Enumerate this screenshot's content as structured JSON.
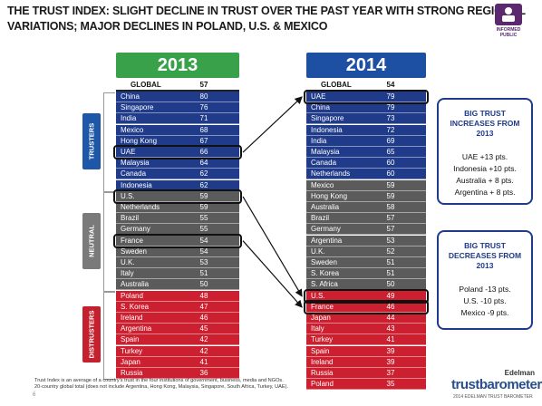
{
  "title_lines": [
    "THE TRUST INDEX: SLIGHT DECLINE IN TRUST OVER THE PAST YEAR WITH STRONG REGIONAL",
    "VARIATIONS; MAJOR DECLINES IN POLAND, U.S. & MEXICO"
  ],
  "badge": {
    "line1": "INFORMED",
    "line2": "PUBLIC"
  },
  "colors": {
    "green": "#3aa14b",
    "blue": "#1d4fa3",
    "navy": "#1f3b8a",
    "gray": "#5b5b5b",
    "red": "#cc1f2f",
    "tag_blue": "#1f57a8",
    "tag_gray": "#7a7a7a",
    "tag_red": "#c4202e"
  },
  "segment_tags": {
    "trusters": "TRUSTERS",
    "neutral": "NEUTRAL",
    "distrusters": "DISTRUSTERS"
  },
  "chart_data": {
    "type": "table",
    "panels": [
      {
        "year": "2013",
        "global_label": "GLOBAL",
        "global_value": 57,
        "rows": [
          {
            "name": "China",
            "value": 80,
            "segment": "trusters"
          },
          {
            "name": "Singapore",
            "value": 76,
            "segment": "trusters"
          },
          {
            "name": "India",
            "value": 71,
            "segment": "trusters"
          },
          {
            "name": "Mexico",
            "value": 68,
            "segment": "trusters"
          },
          {
            "name": "Hong Kong",
            "value": 67,
            "segment": "trusters"
          },
          {
            "name": "UAE",
            "value": 66,
            "segment": "trusters"
          },
          {
            "name": "Malaysia",
            "value": 64,
            "segment": "trusters"
          },
          {
            "name": "Canada",
            "value": 62,
            "segment": "trusters"
          },
          {
            "name": "Indonesia",
            "value": 62,
            "segment": "trusters"
          },
          {
            "name": "U.S.",
            "value": 59,
            "segment": "neutral"
          },
          {
            "name": "Netherlands",
            "value": 59,
            "segment": "neutral"
          },
          {
            "name": "Brazil",
            "value": 55,
            "segment": "neutral"
          },
          {
            "name": "Germany",
            "value": 55,
            "segment": "neutral"
          },
          {
            "name": "France",
            "value": 54,
            "segment": "neutral"
          },
          {
            "name": "Sweden",
            "value": 54,
            "segment": "neutral"
          },
          {
            "name": "U.K.",
            "value": 53,
            "segment": "neutral"
          },
          {
            "name": "Italy",
            "value": 51,
            "segment": "neutral"
          },
          {
            "name": "Australia",
            "value": 50,
            "segment": "neutral"
          },
          {
            "name": "Poland",
            "value": 48,
            "segment": "distrusters"
          },
          {
            "name": "S. Korea",
            "value": 47,
            "segment": "distrusters"
          },
          {
            "name": "Ireland",
            "value": 46,
            "segment": "distrusters"
          },
          {
            "name": "Argentina",
            "value": 45,
            "segment": "distrusters"
          },
          {
            "name": "Spain",
            "value": 42,
            "segment": "distrusters"
          },
          {
            "name": "Turkey",
            "value": 42,
            "segment": "distrusters"
          },
          {
            "name": "Japan",
            "value": 41,
            "segment": "distrusters"
          },
          {
            "name": "Russia",
            "value": 36,
            "segment": "distrusters"
          }
        ]
      },
      {
        "year": "2014",
        "global_label": "GLOBAL",
        "global_value": 54,
        "rows": [
          {
            "name": "UAE",
            "value": 79,
            "segment": "trusters"
          },
          {
            "name": "China",
            "value": 79,
            "segment": "trusters"
          },
          {
            "name": "Singapore",
            "value": 73,
            "segment": "trusters"
          },
          {
            "name": "Indonesia",
            "value": 72,
            "segment": "trusters"
          },
          {
            "name": "India",
            "value": 69,
            "segment": "trusters"
          },
          {
            "name": "Malaysia",
            "value": 65,
            "segment": "trusters"
          },
          {
            "name": "Canada",
            "value": 60,
            "segment": "trusters"
          },
          {
            "name": "Netherlands",
            "value": 60,
            "segment": "trusters"
          },
          {
            "name": "Mexico",
            "value": 59,
            "segment": "neutral"
          },
          {
            "name": "Hong Kong",
            "value": 59,
            "segment": "neutral"
          },
          {
            "name": "Australia",
            "value": 58,
            "segment": "neutral"
          },
          {
            "name": "Brazil",
            "value": 57,
            "segment": "neutral"
          },
          {
            "name": "Germany",
            "value": 57,
            "segment": "neutral"
          },
          {
            "name": "Argentina",
            "value": 53,
            "segment": "neutral"
          },
          {
            "name": "U.K.",
            "value": 52,
            "segment": "neutral"
          },
          {
            "name": "Sweden",
            "value": 51,
            "segment": "neutral"
          },
          {
            "name": "S. Korea",
            "value": 51,
            "segment": "neutral"
          },
          {
            "name": "S. Africa",
            "value": 50,
            "segment": "neutral"
          },
          {
            "name": "U.S.",
            "value": 49,
            "segment": "distrusters"
          },
          {
            "name": "France",
            "value": 46,
            "segment": "distrusters"
          },
          {
            "name": "Japan",
            "value": 44,
            "segment": "distrusters"
          },
          {
            "name": "Italy",
            "value": 43,
            "segment": "distrusters"
          },
          {
            "name": "Turkey",
            "value": 41,
            "segment": "distrusters"
          },
          {
            "name": "Spain",
            "value": 39,
            "segment": "distrusters"
          },
          {
            "name": "Ireland",
            "value": 39,
            "segment": "distrusters"
          },
          {
            "name": "Russia",
            "value": 37,
            "segment": "distrusters"
          },
          {
            "name": "Poland",
            "value": 35,
            "segment": "distrusters"
          }
        ]
      }
    ],
    "highlighted_changes": [
      {
        "name": "UAE",
        "from": 66,
        "to": 79
      },
      {
        "name": "U.S.",
        "from": 59,
        "to": 49
      },
      {
        "name": "France",
        "from": 54,
        "to": 46
      }
    ]
  },
  "callouts": [
    {
      "heading_lines": [
        "BIG TRUST",
        "INCREASES FROM",
        "2013"
      ],
      "items": [
        "UAE +13 pts.",
        "Indonesia +10 pts.",
        "Australia + 8 pts.",
        "Argentina + 8 pts."
      ]
    },
    {
      "heading_lines": [
        "BIG TRUST",
        "DECREASES FROM",
        "2013"
      ],
      "items": [
        "Poland -13 pts.",
        "U.S. -10 pts.",
        "Mexico -9 pts."
      ]
    }
  ],
  "footnote_lines": [
    "Trust Index is an average of a country's trust in the four institutions of government, business, media and NGOs.",
    "20-country global total (does not include Argentina, Hong Kong, Malaysia, Singapore, South Africa, Turkey, UAE)."
  ],
  "page_number": "6",
  "logo": {
    "brand": "Edelman",
    "name": "trustbarometer",
    "tagline": "2014 EDELMAN TRUST BAROMETER"
  }
}
